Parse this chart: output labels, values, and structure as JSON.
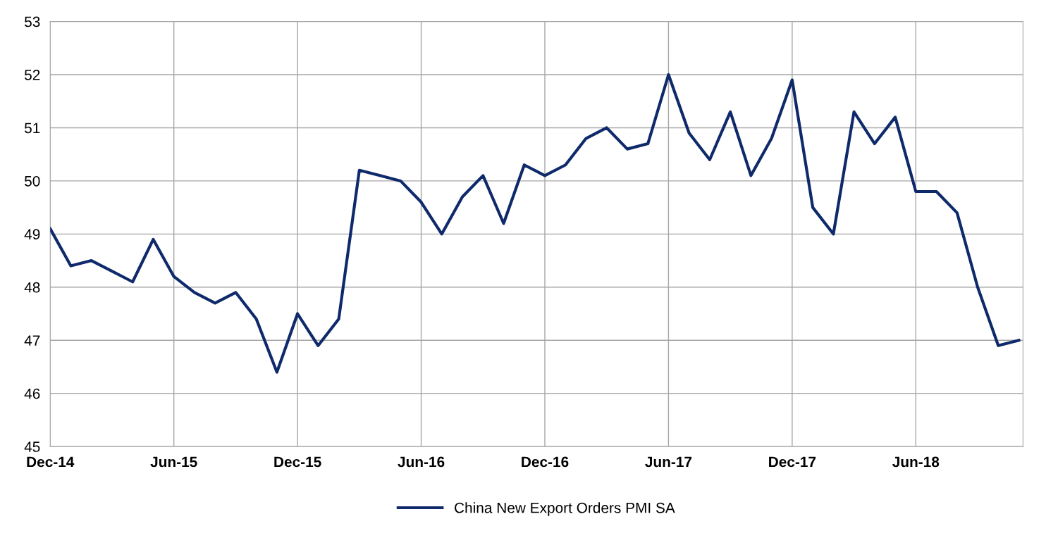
{
  "chart_data": {
    "type": "line",
    "categories": [
      "Dec-14",
      null,
      null,
      null,
      null,
      null,
      "Jun-15",
      null,
      null,
      null,
      null,
      null,
      "Dec-15",
      null,
      null,
      null,
      null,
      null,
      "Jun-16",
      null,
      null,
      null,
      null,
      null,
      "Dec-16",
      null,
      null,
      null,
      null,
      null,
      "Jun-17",
      null,
      null,
      null,
      null,
      null,
      "Dec-17",
      null,
      null,
      null,
      null,
      null,
      "Jun-18",
      null,
      null,
      null,
      null,
      null
    ],
    "series": [
      {
        "name": "China New Export Orders PMI SA",
        "color": "#0f2a6b",
        "values": [
          49.1,
          48.4,
          48.5,
          48.3,
          48.1,
          48.9,
          48.2,
          47.9,
          47.7,
          47.9,
          47.4,
          46.4,
          47.5,
          46.9,
          47.4,
          50.2,
          50.1,
          50.0,
          49.6,
          49.0,
          49.7,
          50.1,
          49.2,
          50.3,
          50.1,
          50.3,
          50.8,
          51.0,
          50.6,
          50.7,
          52.0,
          50.9,
          50.4,
          51.3,
          50.1,
          50.8,
          51.9,
          49.5,
          49.0,
          51.3,
          50.7,
          51.2,
          49.8,
          49.8,
          49.4,
          48.0,
          46.9,
          47.0
        ]
      }
    ],
    "ylim": [
      45,
      53
    ],
    "yticks": [
      45,
      46,
      47,
      48,
      49,
      50,
      51,
      52,
      53
    ],
    "grid": true,
    "legend": "bottom",
    "marker": "none",
    "line_style": "solid"
  }
}
